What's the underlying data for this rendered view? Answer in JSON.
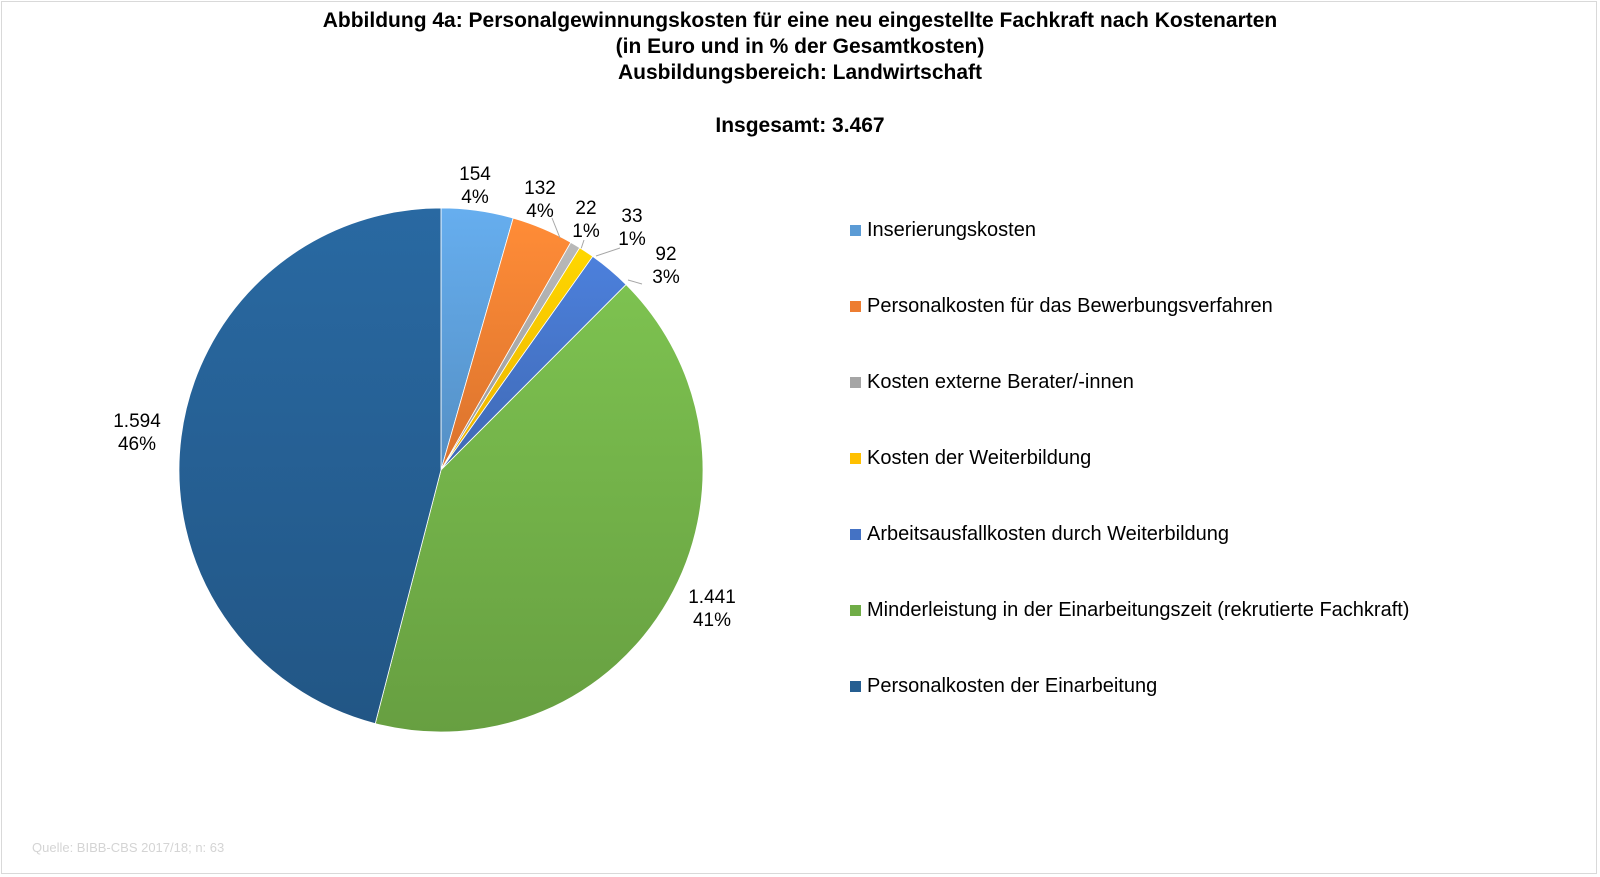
{
  "chart_data": {
    "type": "pie",
    "title": [
      "Abbildung 4a: Personalgewinnungskosten für eine neu eingestellte Fachkraft nach Kostenarten",
      "(in Euro und in % der Gesamtkosten)",
      "Ausbildungsbereich: Landwirtschaft"
    ],
    "total_label": "Insgesamt: 3.467",
    "slices": [
      {
        "name": "Inserierungskosten",
        "value": 154,
        "value_label": "154",
        "percent_label": "4%",
        "color": "#5b9bd5"
      },
      {
        "name": "Personalkosten für das Bewerbungsverfahren",
        "value": 132,
        "value_label": "132",
        "percent_label": "4%",
        "color": "#ed7d31"
      },
      {
        "name": "Kosten externe Berater/-innen",
        "value": 22,
        "value_label": "22",
        "percent_label": "1%",
        "color": "#a5a5a5"
      },
      {
        "name": "Kosten der Weiterbildung",
        "value": 33,
        "value_label": "33",
        "percent_label": "1%",
        "color": "#ffc000"
      },
      {
        "name": "Arbeitsausfallkosten durch Weiterbildung",
        "value": 92,
        "value_label": "92",
        "percent_label": "3%",
        "color": "#4472c4"
      },
      {
        "name": "Minderleistung in der Einarbeitungszeit (rekrutierte Fachkraft)",
        "value": 1441,
        "value_label": "1.441",
        "percent_label": "41%",
        "color": "#70ad47"
      },
      {
        "name": "Personalkosten der Einarbeitung",
        "value": 1594,
        "value_label": "1.594",
        "percent_label": "46%",
        "color": "#255e91"
      }
    ],
    "legend_position": "right"
  },
  "source": "Quelle: BIBB-CBS 2017/18; n: 63"
}
